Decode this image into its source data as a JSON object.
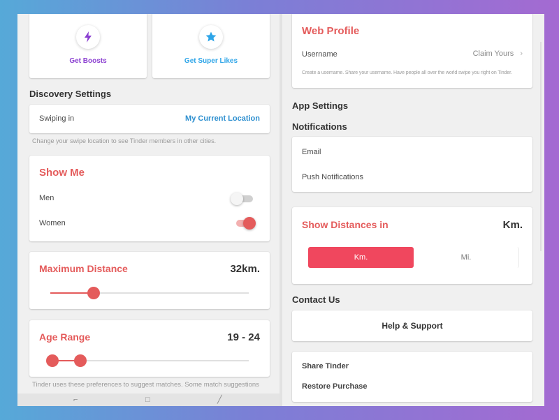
{
  "left": {
    "boosts_label": "Get Boosts",
    "superlikes_label": "Get Super Likes",
    "discovery_title": "Discovery Settings",
    "swiping_label": "Swiping in",
    "swiping_value": "My Current Location",
    "swiping_hint": "Change your swipe location to see Tinder members in other cities.",
    "show_me_title": "Show Me",
    "men_label": "Men",
    "women_label": "Women",
    "men_enabled": false,
    "women_enabled": true,
    "max_distance_title": "Maximum Distance",
    "max_distance_value": "32km.",
    "max_distance_fraction": 0.22,
    "age_range_title": "Age Range",
    "age_range_value": "19 - 24",
    "age_min": 19,
    "age_max": 24,
    "footer_hint": "Tinder uses these preferences to suggest matches. Some match suggestions"
  },
  "right": {
    "web_profile_title": "Web Profile",
    "username_label": "Username",
    "username_action": "Claim Yours",
    "username_hint": "Create a username. Share your username. Have people all over the world swipe you right on Tinder.",
    "app_settings_title": "App Settings",
    "notifications_title": "Notifications",
    "email_label": "Email",
    "push_label": "Push Notifications",
    "distances_title": "Show Distances in",
    "distances_value": "Km.",
    "unit_km": "Km.",
    "unit_mi": "Mi.",
    "contact_title": "Contact Us",
    "help_label": "Help & Support",
    "share_label": "Share Tinder",
    "restore_label": "Restore Purchase"
  },
  "colors": {
    "accent_red": "#e45b5b",
    "segment_active": "#f0475e",
    "location_blue": "#2d8fcf",
    "boost_purple": "#8b3fd1",
    "superlike_blue": "#2ea5e8"
  },
  "icons": {
    "boost": "lightning-bolt-icon",
    "superlike": "star-icon",
    "chevron": "chevron-right-icon"
  }
}
